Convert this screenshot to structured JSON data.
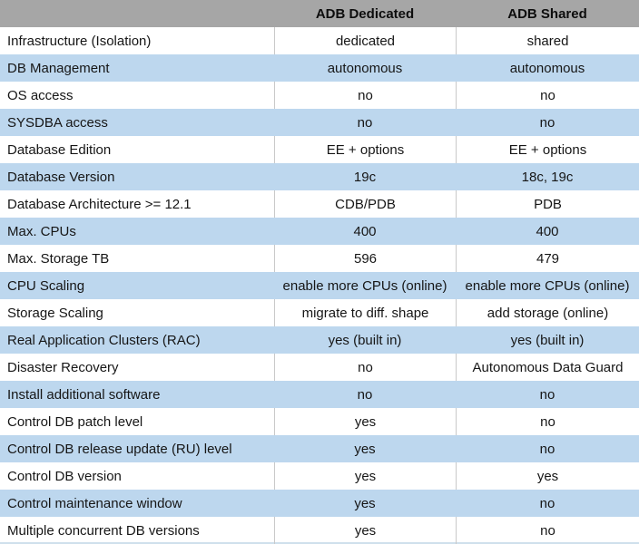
{
  "colors": {
    "header_bg": "#a6a6a6",
    "stripe_bg": "#bdd7ee",
    "divider": "#c9c9c9",
    "bottom_border": "#cfe0ec"
  },
  "table": {
    "columns": {
      "feature": "",
      "dedicated": "ADB Dedicated",
      "shared": "ADB Shared"
    },
    "rows": [
      {
        "feature": "Infrastructure (Isolation)",
        "dedicated": "dedicated",
        "shared": "shared"
      },
      {
        "feature": "DB Management",
        "dedicated": "autonomous",
        "shared": "autonomous"
      },
      {
        "feature": "OS access",
        "dedicated": "no",
        "shared": "no"
      },
      {
        "feature": "SYSDBA access",
        "dedicated": "no",
        "shared": "no"
      },
      {
        "feature": "Database Edition",
        "dedicated": "EE + options",
        "shared": "EE + options"
      },
      {
        "feature": "Database Version",
        "dedicated": "19c",
        "shared": "18c, 19c"
      },
      {
        "feature": "Database Architecture >= 12.1",
        "dedicated": "CDB/PDB",
        "shared": "PDB"
      },
      {
        "feature": "Max. CPUs",
        "dedicated": "400",
        "shared": "400"
      },
      {
        "feature": "Max. Storage TB",
        "dedicated": "596",
        "shared": "479"
      },
      {
        "feature": "CPU Scaling",
        "dedicated": "enable more CPUs (online)",
        "shared": "enable more CPUs (online)"
      },
      {
        "feature": "Storage Scaling",
        "dedicated": "migrate to diff. shape",
        "shared": "add storage (online)"
      },
      {
        "feature": "Real Application Clusters (RAC)",
        "dedicated": "yes (built in)",
        "shared": "yes (built in)"
      },
      {
        "feature": "Disaster Recovery",
        "dedicated": "no",
        "shared": "Autonomous Data Guard"
      },
      {
        "feature": "Install additional software",
        "dedicated": "no",
        "shared": "no"
      },
      {
        "feature": "Control DB patch level",
        "dedicated": "yes",
        "shared": "no"
      },
      {
        "feature": "Control DB release update (RU) level",
        "dedicated": "yes",
        "shared": "no"
      },
      {
        "feature": "Control DB version",
        "dedicated": "yes",
        "shared": "yes"
      },
      {
        "feature": "Control maintenance window",
        "dedicated": "yes",
        "shared": "no"
      },
      {
        "feature": "Multiple concurrent DB versions",
        "dedicated": "yes",
        "shared": "no"
      }
    ]
  }
}
